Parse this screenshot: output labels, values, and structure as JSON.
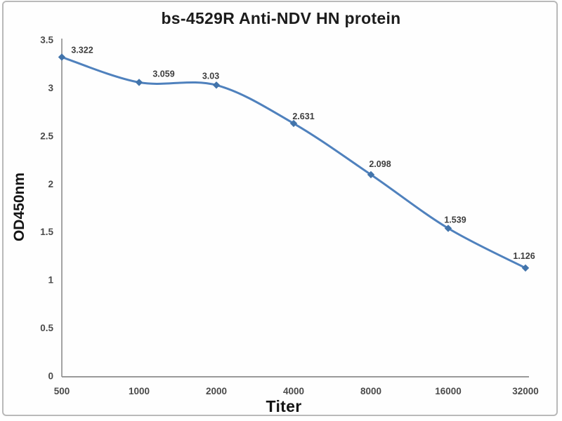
{
  "chart": {
    "title": "bs-4529R Anti-NDV HN protein",
    "x_axis_title": "Titer",
    "y_axis_title": "OD450nm"
  },
  "chart_data": {
    "type": "line",
    "title": "bs-4529R Anti-NDV HN protein",
    "xlabel": "Titer",
    "ylabel": "OD450nm",
    "categories": [
      "500",
      "1000",
      "2000",
      "4000",
      "8000",
      "16000",
      "32000"
    ],
    "values": [
      3.322,
      3.059,
      3.03,
      2.631,
      2.098,
      1.539,
      1.126
    ],
    "data_labels": [
      "3.322",
      "3.059",
      "3.03",
      "2.631",
      "2.098",
      "1.539",
      "1.126"
    ],
    "y_ticks": [
      "0",
      "0.5",
      "1",
      "1.5",
      "2",
      "2.5",
      "3",
      "3.5"
    ],
    "ylim": [
      0,
      3.5
    ],
    "grid": false,
    "legend": false,
    "smooth": true,
    "marker": "diamond",
    "colors": {
      "line": "#4f81bd",
      "marker": "#4274ab",
      "axis": "#8c8c8c",
      "tick_text": "#4a4a4a",
      "data_label_text": "#3d3d3d",
      "title_text": "#1c1c1c"
    }
  }
}
